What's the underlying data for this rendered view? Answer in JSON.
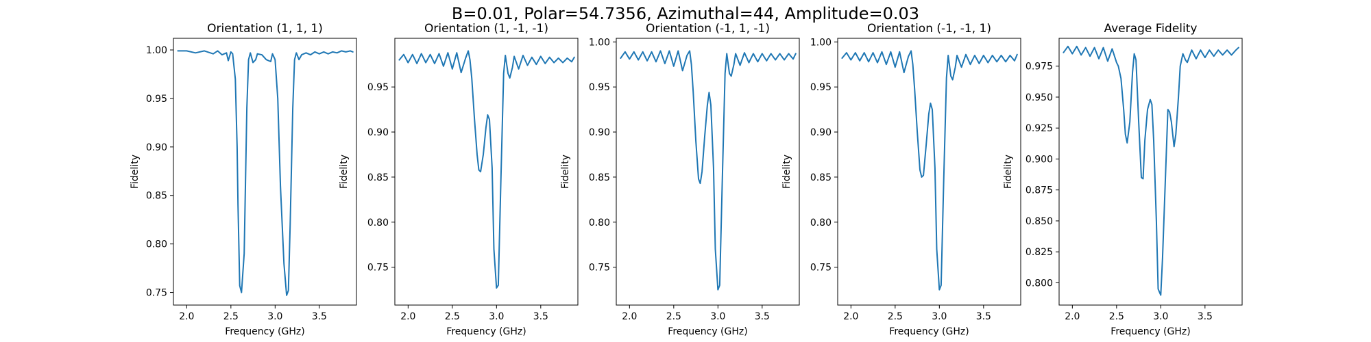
{
  "figure_title": "B=0.01, Polar=54.7356, Azimuthal=44, Amplitude=0.03",
  "line_color": "#1f77b4",
  "chart_data": [
    {
      "type": "line",
      "title": "Orientation (1, 1, 1)",
      "xlabel": "Frequency (GHz)",
      "ylabel": "Fidelity",
      "xlim": [
        1.85,
        3.92
      ],
      "ylim": [
        0.737,
        1.012
      ],
      "xticks": [
        2.0,
        2.5,
        3.0,
        3.5
      ],
      "yticks": [
        0.75,
        0.8,
        0.85,
        0.9,
        0.95,
        1.0
      ],
      "x": [
        1.9,
        2.0,
        2.1,
        2.2,
        2.3,
        2.35,
        2.4,
        2.45,
        2.47,
        2.5,
        2.52,
        2.55,
        2.57,
        2.58,
        2.6,
        2.62,
        2.65,
        2.68,
        2.7,
        2.72,
        2.75,
        2.78,
        2.8,
        2.85,
        2.9,
        2.95,
        2.97,
        3.0,
        3.03,
        3.06,
        3.1,
        3.13,
        3.15,
        3.17,
        3.2,
        3.22,
        3.24,
        3.27,
        3.3,
        3.35,
        3.4,
        3.45,
        3.5,
        3.55,
        3.6,
        3.65,
        3.7,
        3.75,
        3.8,
        3.85,
        3.88
      ],
      "series": [
        {
          "values": [
            0.999,
            0.999,
            0.997,
            0.999,
            0.996,
            0.999,
            0.995,
            0.997,
            0.989,
            0.998,
            0.996,
            0.97,
            0.9,
            0.84,
            0.757,
            0.75,
            0.79,
            0.94,
            0.99,
            0.997,
            0.987,
            0.99,
            0.996,
            0.995,
            0.99,
            0.988,
            0.996,
            0.99,
            0.95,
            0.86,
            0.78,
            0.747,
            0.752,
            0.82,
            0.94,
            0.99,
            0.997,
            0.99,
            0.995,
            0.997,
            0.995,
            0.998,
            0.996,
            0.998,
            0.996,
            0.998,
            0.997,
            0.999,
            0.998,
            0.999,
            0.998
          ]
        }
      ]
    },
    {
      "type": "line",
      "title": "Orientation (1, -1, -1)",
      "xlabel": "Frequency (GHz)",
      "ylabel": "Fidelity",
      "xlim": [
        1.85,
        3.92
      ],
      "ylim": [
        0.708,
        1.004
      ],
      "xticks": [
        2.0,
        2.5,
        3.0,
        3.5
      ],
      "yticks": [
        0.75,
        0.8,
        0.85,
        0.9,
        0.95
      ],
      "x": [
        1.9,
        1.95,
        2.0,
        2.05,
        2.1,
        2.15,
        2.2,
        2.25,
        2.3,
        2.35,
        2.4,
        2.45,
        2.5,
        2.55,
        2.6,
        2.65,
        2.68,
        2.7,
        2.72,
        2.75,
        2.78,
        2.8,
        2.82,
        2.85,
        2.88,
        2.9,
        2.92,
        2.95,
        2.97,
        3.0,
        3.02,
        3.05,
        3.08,
        3.1,
        3.13,
        3.15,
        3.18,
        3.2,
        3.25,
        3.3,
        3.35,
        3.4,
        3.45,
        3.5,
        3.55,
        3.6,
        3.65,
        3.7,
        3.75,
        3.8,
        3.85,
        3.88
      ],
      "series": [
        {
          "values": [
            0.98,
            0.986,
            0.977,
            0.986,
            0.976,
            0.987,
            0.977,
            0.986,
            0.976,
            0.987,
            0.973,
            0.988,
            0.97,
            0.988,
            0.966,
            0.982,
            0.99,
            0.98,
            0.96,
            0.915,
            0.875,
            0.858,
            0.856,
            0.875,
            0.905,
            0.919,
            0.914,
            0.86,
            0.77,
            0.727,
            0.73,
            0.85,
            0.965,
            0.985,
            0.965,
            0.96,
            0.972,
            0.984,
            0.97,
            0.985,
            0.974,
            0.983,
            0.975,
            0.984,
            0.976,
            0.983,
            0.977,
            0.982,
            0.977,
            0.982,
            0.978,
            0.983
          ]
        }
      ]
    },
    {
      "type": "line",
      "title": "Orientation (-1, 1, -1)",
      "xlabel": "Frequency (GHz)",
      "ylabel": "Fidelity",
      "xlim": [
        1.85,
        3.92
      ],
      "ylim": [
        0.708,
        1.004
      ],
      "xticks": [
        2.0,
        2.5,
        3.0,
        3.5
      ],
      "yticks": [
        0.75,
        0.8,
        0.85,
        0.9,
        0.95,
        1.0
      ],
      "x": [
        1.9,
        1.95,
        2.0,
        2.05,
        2.1,
        2.15,
        2.2,
        2.25,
        2.3,
        2.35,
        2.4,
        2.45,
        2.5,
        2.55,
        2.6,
        2.65,
        2.68,
        2.7,
        2.72,
        2.75,
        2.78,
        2.8,
        2.82,
        2.85,
        2.88,
        2.9,
        2.92,
        2.95,
        2.97,
        3.0,
        3.02,
        3.05,
        3.08,
        3.1,
        3.13,
        3.15,
        3.18,
        3.2,
        3.25,
        3.3,
        3.35,
        3.4,
        3.45,
        3.5,
        3.55,
        3.6,
        3.65,
        3.7,
        3.75,
        3.8,
        3.85,
        3.88
      ],
      "series": [
        {
          "values": [
            0.982,
            0.989,
            0.981,
            0.989,
            0.98,
            0.989,
            0.979,
            0.989,
            0.978,
            0.99,
            0.976,
            0.99,
            0.973,
            0.99,
            0.968,
            0.985,
            0.99,
            0.975,
            0.945,
            0.89,
            0.848,
            0.843,
            0.856,
            0.895,
            0.93,
            0.944,
            0.93,
            0.86,
            0.77,
            0.725,
            0.73,
            0.85,
            0.965,
            0.987,
            0.965,
            0.962,
            0.975,
            0.987,
            0.974,
            0.988,
            0.977,
            0.987,
            0.978,
            0.987,
            0.979,
            0.987,
            0.98,
            0.987,
            0.98,
            0.987,
            0.981,
            0.987
          ]
        }
      ]
    },
    {
      "type": "line",
      "title": "Orientation (-1, -1, 1)",
      "xlabel": "Frequency (GHz)",
      "ylabel": "Fidelity",
      "xlim": [
        1.85,
        3.92
      ],
      "ylim": [
        0.708,
        1.004
      ],
      "xticks": [
        2.0,
        2.5,
        3.0,
        3.5
      ],
      "yticks": [
        0.75,
        0.8,
        0.85,
        0.9,
        0.95,
        1.0
      ],
      "x": [
        1.9,
        1.95,
        2.0,
        2.05,
        2.1,
        2.15,
        2.2,
        2.25,
        2.3,
        2.35,
        2.4,
        2.45,
        2.5,
        2.55,
        2.6,
        2.65,
        2.68,
        2.7,
        2.72,
        2.75,
        2.78,
        2.8,
        2.82,
        2.85,
        2.88,
        2.9,
        2.92,
        2.95,
        2.97,
        3.0,
        3.02,
        3.05,
        3.08,
        3.1,
        3.13,
        3.15,
        3.18,
        3.2,
        3.25,
        3.3,
        3.35,
        3.4,
        3.45,
        3.5,
        3.55,
        3.6,
        3.65,
        3.7,
        3.75,
        3.8,
        3.85,
        3.88
      ],
      "series": [
        {
          "values": [
            0.982,
            0.988,
            0.98,
            0.988,
            0.979,
            0.988,
            0.978,
            0.988,
            0.977,
            0.989,
            0.975,
            0.989,
            0.972,
            0.989,
            0.966,
            0.984,
            0.99,
            0.975,
            0.948,
            0.9,
            0.858,
            0.85,
            0.852,
            0.885,
            0.92,
            0.932,
            0.925,
            0.86,
            0.77,
            0.725,
            0.73,
            0.85,
            0.96,
            0.985,
            0.962,
            0.958,
            0.972,
            0.985,
            0.972,
            0.986,
            0.975,
            0.985,
            0.976,
            0.985,
            0.977,
            0.985,
            0.978,
            0.985,
            0.978,
            0.985,
            0.979,
            0.986
          ]
        }
      ]
    },
    {
      "type": "line",
      "title": "Average Fidelity",
      "xlabel": "Frequency (GHz)",
      "ylabel": "Fidelity",
      "xlim": [
        1.85,
        3.92
      ],
      "ylim": [
        0.782,
        0.9975
      ],
      "xticks": [
        2.0,
        2.5,
        3.0,
        3.5
      ],
      "yticks": [
        0.8,
        0.825,
        0.85,
        0.875,
        0.9,
        0.925,
        0.95,
        0.975
      ],
      "x": [
        1.9,
        1.95,
        2.0,
        2.05,
        2.1,
        2.15,
        2.2,
        2.25,
        2.3,
        2.35,
        2.4,
        2.45,
        2.5,
        2.52,
        2.55,
        2.58,
        2.6,
        2.62,
        2.65,
        2.68,
        2.7,
        2.72,
        2.75,
        2.78,
        2.8,
        2.82,
        2.85,
        2.88,
        2.9,
        2.92,
        2.95,
        2.97,
        3.0,
        3.02,
        3.05,
        3.08,
        3.1,
        3.12,
        3.15,
        3.17,
        3.2,
        3.22,
        3.25,
        3.28,
        3.3,
        3.35,
        3.4,
        3.45,
        3.5,
        3.55,
        3.6,
        3.65,
        3.7,
        3.75,
        3.8,
        3.85,
        3.88
      ],
      "series": [
        {
          "values": [
            0.986,
            0.991,
            0.985,
            0.991,
            0.984,
            0.99,
            0.983,
            0.99,
            0.981,
            0.99,
            0.979,
            0.989,
            0.978,
            0.975,
            0.965,
            0.94,
            0.92,
            0.913,
            0.93,
            0.97,
            0.985,
            0.98,
            0.93,
            0.885,
            0.884,
            0.915,
            0.94,
            0.948,
            0.944,
            0.915,
            0.85,
            0.795,
            0.79,
            0.82,
            0.88,
            0.94,
            0.938,
            0.93,
            0.91,
            0.92,
            0.95,
            0.975,
            0.985,
            0.98,
            0.978,
            0.988,
            0.981,
            0.988,
            0.982,
            0.988,
            0.983,
            0.988,
            0.984,
            0.988,
            0.984,
            0.988,
            0.99
          ]
        }
      ]
    }
  ]
}
